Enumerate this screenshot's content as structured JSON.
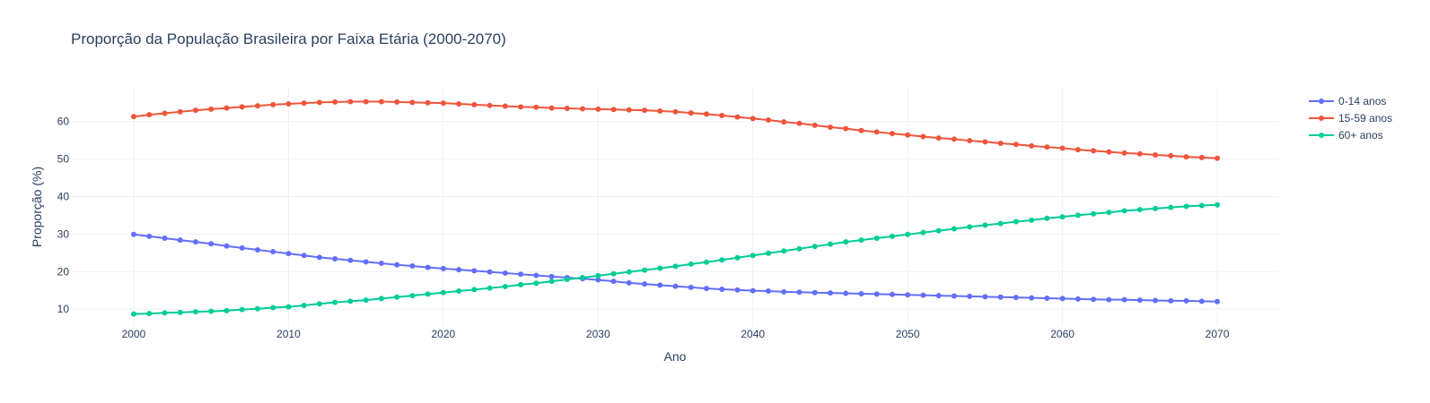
{
  "chart_data": {
    "type": "line",
    "title": "Proporção da População Brasileira por Faixa Etária (2000-2070)",
    "xlabel": "Ano",
    "ylabel": "Proporção (%)",
    "xlim": [
      1996,
      2074
    ],
    "ylim": [
      5.5,
      69
    ],
    "xticks": [
      2000,
      2010,
      2020,
      2030,
      2040,
      2050,
      2060,
      2070
    ],
    "yticks": [
      10,
      20,
      30,
      40,
      50,
      60
    ],
    "grid": true,
    "legend_position": "top-right",
    "x": [
      2000,
      2001,
      2002,
      2003,
      2004,
      2005,
      2006,
      2007,
      2008,
      2009,
      2010,
      2011,
      2012,
      2013,
      2014,
      2015,
      2016,
      2017,
      2018,
      2019,
      2020,
      2021,
      2022,
      2023,
      2024,
      2025,
      2026,
      2027,
      2028,
      2029,
      2030,
      2031,
      2032,
      2033,
      2034,
      2035,
      2036,
      2037,
      2038,
      2039,
      2040,
      2041,
      2042,
      2043,
      2044,
      2045,
      2046,
      2047,
      2048,
      2049,
      2050,
      2051,
      2052,
      2053,
      2054,
      2055,
      2056,
      2057,
      2058,
      2059,
      2060,
      2061,
      2062,
      2063,
      2064,
      2065,
      2066,
      2067,
      2068,
      2069,
      2070
    ],
    "series": [
      {
        "name": "0-14 anos",
        "color": "#636efa",
        "values": [
          29.9,
          29.4,
          28.9,
          28.4,
          27.9,
          27.4,
          26.8,
          26.3,
          25.8,
          25.3,
          24.8,
          24.3,
          23.8,
          23.4,
          23.0,
          22.6,
          22.2,
          21.8,
          21.5,
          21.1,
          20.8,
          20.5,
          20.2,
          19.9,
          19.6,
          19.3,
          19.0,
          18.7,
          18.4,
          18.1,
          17.8,
          17.4,
          17.0,
          16.7,
          16.4,
          16.1,
          15.8,
          15.5,
          15.3,
          15.1,
          14.9,
          14.8,
          14.6,
          14.5,
          14.4,
          14.3,
          14.2,
          14.1,
          14.0,
          13.9,
          13.8,
          13.7,
          13.6,
          13.5,
          13.4,
          13.3,
          13.2,
          13.1,
          13.0,
          12.9,
          12.8,
          12.7,
          12.6,
          12.5,
          12.5,
          12.4,
          12.3,
          12.2,
          12.2,
          12.1,
          12.0
        ]
      },
      {
        "name": "15-59 anos",
        "color": "#ef553b",
        "values": [
          61.3,
          61.8,
          62.2,
          62.6,
          63.0,
          63.3,
          63.6,
          63.9,
          64.2,
          64.5,
          64.7,
          64.9,
          65.1,
          65.2,
          65.3,
          65.3,
          65.3,
          65.2,
          65.1,
          65.0,
          64.9,
          64.7,
          64.5,
          64.3,
          64.1,
          63.9,
          63.8,
          63.6,
          63.5,
          63.4,
          63.3,
          63.2,
          63.1,
          63.0,
          62.8,
          62.6,
          62.3,
          62.0,
          61.6,
          61.2,
          60.8,
          60.4,
          59.9,
          59.5,
          59.0,
          58.5,
          58.1,
          57.6,
          57.2,
          56.8,
          56.4,
          56.0,
          55.6,
          55.3,
          54.9,
          54.6,
          54.2,
          53.9,
          53.5,
          53.2,
          52.9,
          52.5,
          52.2,
          51.9,
          51.6,
          51.4,
          51.1,
          50.9,
          50.6,
          50.4,
          50.2
        ]
      },
      {
        "name": "60+ anos",
        "color": "#00cc96",
        "values": [
          8.7,
          8.8,
          9.0,
          9.1,
          9.3,
          9.4,
          9.6,
          9.9,
          10.1,
          10.4,
          10.6,
          11.0,
          11.4,
          11.8,
          12.1,
          12.4,
          12.8,
          13.2,
          13.6,
          14.0,
          14.4,
          14.8,
          15.2,
          15.6,
          16.0,
          16.5,
          16.9,
          17.4,
          17.9,
          18.4,
          18.9,
          19.4,
          19.9,
          20.4,
          20.9,
          21.4,
          22.0,
          22.5,
          23.1,
          23.7,
          24.3,
          24.9,
          25.5,
          26.1,
          26.7,
          27.3,
          27.9,
          28.4,
          28.9,
          29.4,
          29.9,
          30.4,
          30.9,
          31.4,
          31.9,
          32.4,
          32.8,
          33.3,
          33.7,
          34.2,
          34.6,
          35.0,
          35.4,
          35.8,
          36.2,
          36.5,
          36.8,
          37.1,
          37.4,
          37.6,
          37.8
        ]
      }
    ]
  }
}
